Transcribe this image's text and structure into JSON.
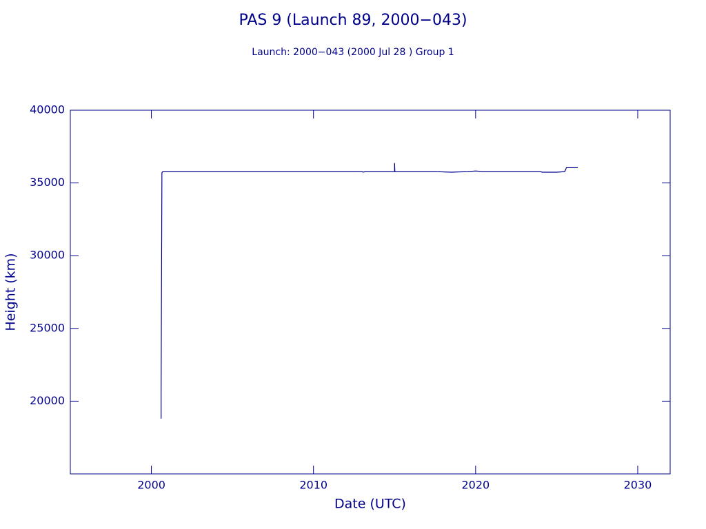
{
  "chart_data": {
    "type": "line",
    "title": "PAS 9 (Launch 89, 2000−043)",
    "subtitle": "Launch: 2000−043  (2000 Jul 28 )  Group 1",
    "x_label": "Date (UTC)",
    "y_label": "Height (km)",
    "x": [
      2000.6,
      2000.6,
      2000.65,
      2000.7,
      2013.0,
      2013.05,
      2013.2,
      2015.0,
      2015.0,
      2015.02,
      2017.5,
      2018.5,
      2019.5,
      2020.0,
      2020.5,
      2024.0,
      2024.1,
      2025.0,
      2025.5,
      2025.6,
      2026.3
    ],
    "series": [
      {
        "color": "#00008b",
        "values": [
          18800,
          20600,
          35700,
          35780,
          35780,
          35740,
          35780,
          35780,
          36370,
          35780,
          35780,
          35740,
          35780,
          35820,
          35780,
          35780,
          35740,
          35740,
          35780,
          36050,
          36050
        ]
      }
    ],
    "xlim": [
      1995,
      2032
    ],
    "ylim": [
      15000,
      40000
    ],
    "xticks": [
      2000,
      2010,
      2020,
      2030
    ],
    "yticks": [
      20000,
      25000,
      30000,
      35000,
      40000
    ],
    "axis_color": "#00008b"
  }
}
